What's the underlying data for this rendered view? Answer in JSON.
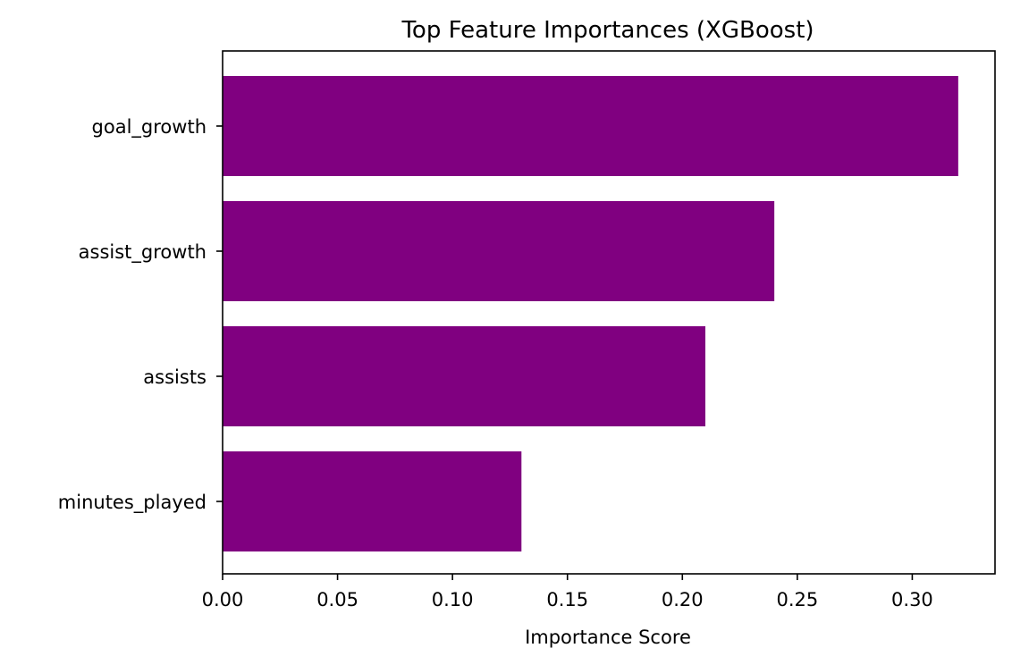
{
  "chart_data": {
    "type": "bar",
    "orientation": "horizontal",
    "title": "Top Feature Importances (XGBoost)",
    "xlabel": "Importance Score",
    "ylabel": "",
    "categories": [
      "minutes_played",
      "assists",
      "assist_growth",
      "goal_growth"
    ],
    "values": [
      0.13,
      0.21,
      0.24,
      0.32
    ],
    "xlim": [
      0.0,
      0.336
    ],
    "xticks": [
      "0.00",
      "0.05",
      "0.10",
      "0.15",
      "0.20",
      "0.25",
      "0.30"
    ],
    "bar_color": "#800080",
    "grid": false,
    "legend": "none"
  }
}
